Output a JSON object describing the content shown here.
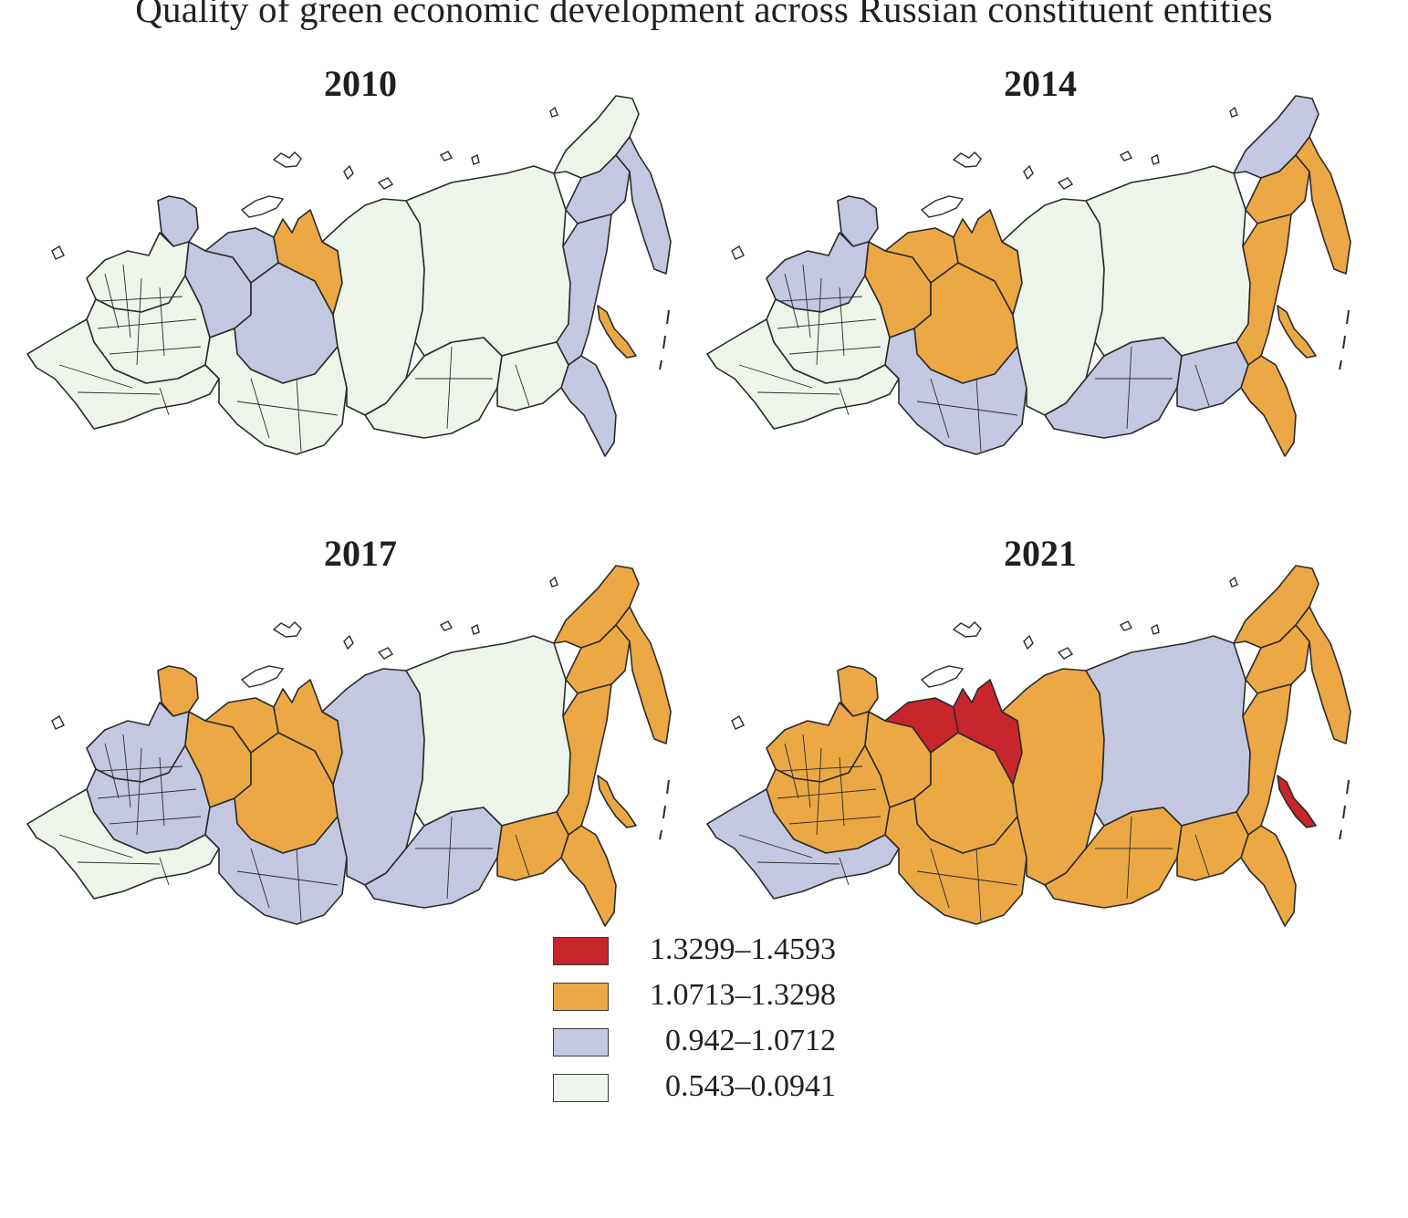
{
  "title": "Quality of green economic development across Russian constituent entities",
  "colors": {
    "class1": "#c8252d",
    "class2": "#eba844",
    "class3": "#c4c7e0",
    "class4": "#edf5ea",
    "border": "#2b2b2b"
  },
  "legend": [
    {
      "label": "1.3299–1.4593",
      "color": "#c8252d"
    },
    {
      "label": "1.0713–1.3298",
      "color": "#eba844"
    },
    {
      "label": "0.942–1.0712",
      "color": "#c4c7e0"
    },
    {
      "label": "0.543–0.0941",
      "color": "#edf5ea"
    }
  ],
  "maps": [
    {
      "year": "2010",
      "regions": {
        "kola": "class3",
        "northwest": "class4",
        "central": "class4",
        "komi": "class3",
        "nenets": "class3",
        "urals": "class3",
        "yamal": "class2",
        "south": "class4",
        "westsib": "class4",
        "krasnoyarsk": "class4",
        "irkutsk": "class4",
        "yakutia": "class4",
        "chukotka": "class4",
        "magadan": "class3",
        "kamchatka": "class3",
        "khabarovsk": "class3",
        "amur": "class4",
        "primorye": "class3",
        "sakhalin": "class2"
      }
    },
    {
      "year": "2014",
      "regions": {
        "kola": "class3",
        "northwest": "class3",
        "central": "class4",
        "komi": "class2",
        "nenets": "class2",
        "urals": "class2",
        "yamal": "class2",
        "south": "class4",
        "westsib": "class3",
        "krasnoyarsk": "class4",
        "irkutsk": "class3",
        "yakutia": "class4",
        "chukotka": "class3",
        "magadan": "class2",
        "kamchatka": "class2",
        "khabarovsk": "class2",
        "amur": "class3",
        "primorye": "class2",
        "sakhalin": "class2"
      }
    },
    {
      "year": "2017",
      "regions": {
        "kola": "class2",
        "northwest": "class3",
        "central": "class3",
        "komi": "class2",
        "nenets": "class2",
        "urals": "class2",
        "yamal": "class2",
        "south": "class4",
        "westsib": "class3",
        "krasnoyarsk": "class3",
        "irkutsk": "class3",
        "yakutia": "class4",
        "chukotka": "class2",
        "magadan": "class2",
        "kamchatka": "class2",
        "khabarovsk": "class2",
        "amur": "class2",
        "primorye": "class2",
        "sakhalin": "class2"
      }
    },
    {
      "year": "2021",
      "regions": {
        "kola": "class2",
        "northwest": "class2",
        "central": "class2",
        "komi": "class2",
        "nenets": "class1",
        "urals": "class2",
        "yamal": "class1",
        "south": "class3",
        "westsib": "class2",
        "krasnoyarsk": "class2",
        "irkutsk": "class2",
        "yakutia": "class3",
        "chukotka": "class2",
        "magadan": "class2",
        "kamchatka": "class2",
        "khabarovsk": "class2",
        "amur": "class2",
        "primorye": "class2",
        "sakhalin": "class1"
      }
    }
  ]
}
